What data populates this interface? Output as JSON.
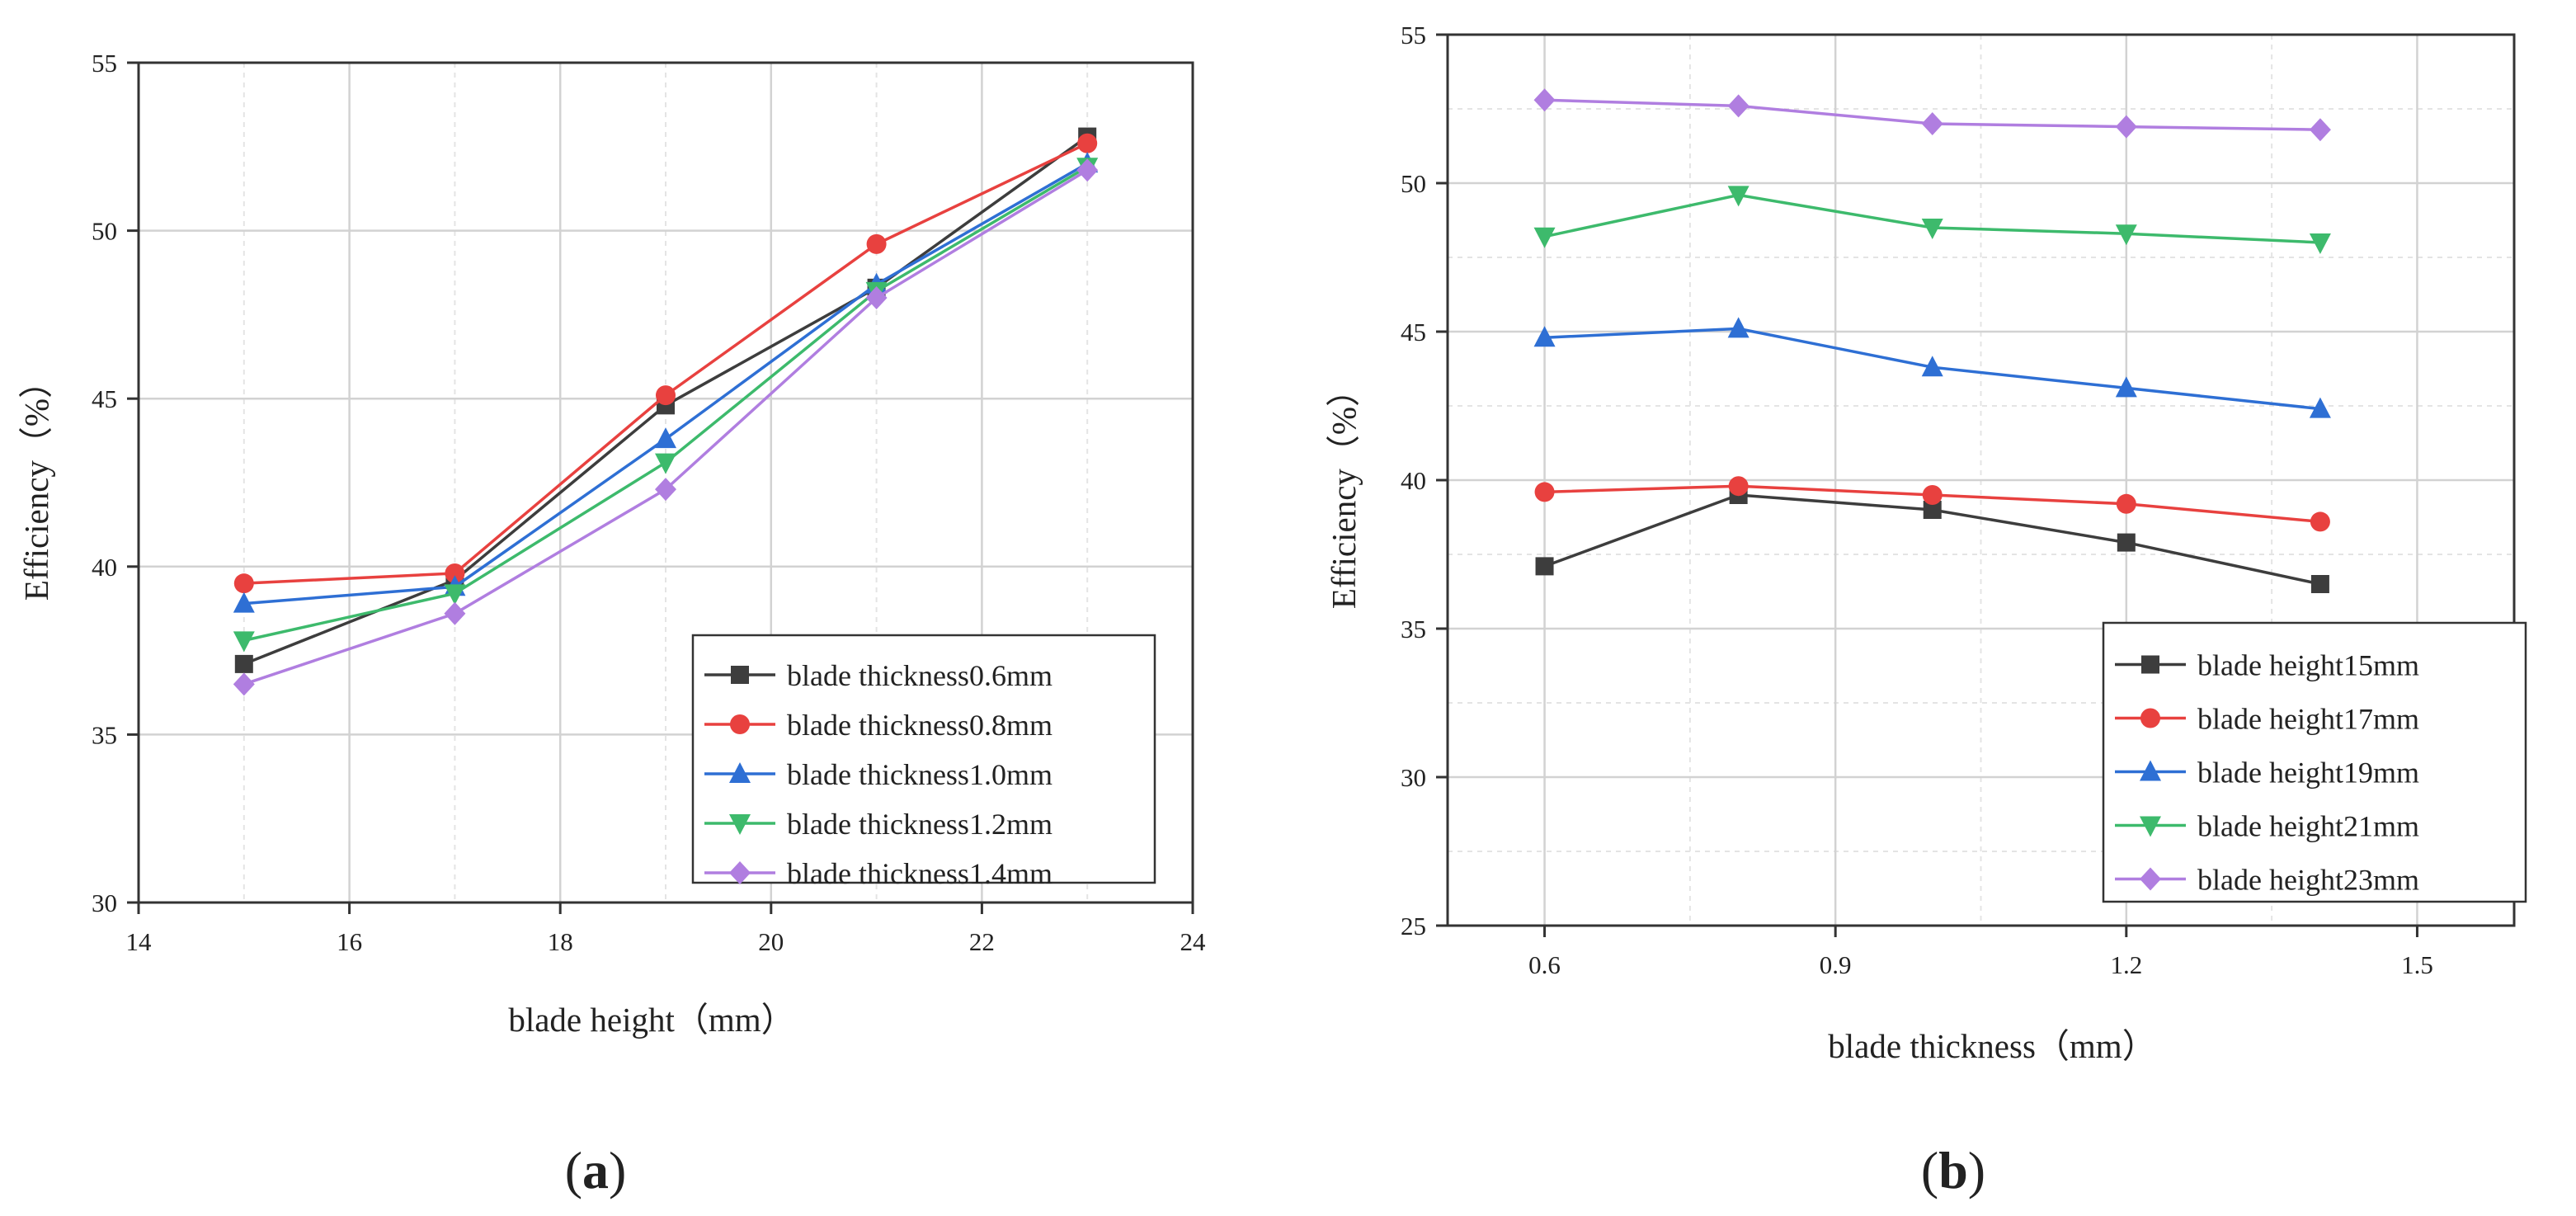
{
  "colors": {
    "gray": "#3d3d3d",
    "red": "#e8413f",
    "blue": "#2e6fd4",
    "green": "#3dba6c",
    "purple": "#b07ee0"
  },
  "chart_data": [
    {
      "type": "line",
      "panel_label_prefix": "(",
      "panel_label_letter": "a",
      "panel_label_suffix": ")",
      "xlabel": "blade height（mm）",
      "ylabel": "Efficiency（%）",
      "xlim": [
        14,
        24
      ],
      "ylim": [
        30,
        55
      ],
      "xticks": [
        14,
        16,
        18,
        20,
        22,
        24
      ],
      "yticks": [
        30,
        35,
        40,
        45,
        50,
        55
      ],
      "grid": true,
      "legend_position": "bottom-right",
      "series": [
        {
          "name": "blade thickness0.6mm",
          "color": "#3d3d3d",
          "marker": "square",
          "x": [
            15,
            17,
            19,
            21,
            23
          ],
          "y": [
            37.1,
            39.6,
            44.8,
            48.3,
            52.8
          ]
        },
        {
          "name": "blade thickness0.8mm",
          "color": "#e8413f",
          "marker": "circle",
          "x": [
            15,
            17,
            19,
            21,
            23
          ],
          "y": [
            39.5,
            39.8,
            45.1,
            49.6,
            52.6
          ]
        },
        {
          "name": "blade thickness1.0mm",
          "color": "#2e6fd4",
          "marker": "triangle-up",
          "x": [
            15,
            17,
            19,
            21,
            23
          ],
          "y": [
            38.9,
            39.4,
            43.8,
            48.4,
            52.0
          ]
        },
        {
          "name": "blade thickness1.2mm",
          "color": "#3dba6c",
          "marker": "triangle-down",
          "x": [
            15,
            17,
            19,
            21,
            23
          ],
          "y": [
            37.8,
            39.2,
            43.1,
            48.2,
            51.9
          ]
        },
        {
          "name": "blade thickness1.4mm",
          "color": "#b07ee0",
          "marker": "diamond",
          "x": [
            15,
            17,
            19,
            21,
            23
          ],
          "y": [
            36.5,
            38.6,
            42.3,
            48.0,
            51.8
          ]
        }
      ]
    },
    {
      "type": "line",
      "panel_label_prefix": "(",
      "panel_label_letter": "b",
      "panel_label_suffix": ")",
      "xlabel": "blade thickness（mm）",
      "ylabel": "Efficiency（%）",
      "xlim": [
        0.5,
        1.6
      ],
      "ylim": [
        25,
        55
      ],
      "xticks": [
        0.6,
        0.9,
        1.2,
        1.5
      ],
      "yticks": [
        25,
        30,
        35,
        40,
        45,
        50,
        55
      ],
      "grid": true,
      "legend_position": "bottom-right",
      "series": [
        {
          "name": "blade height15mm",
          "color": "#3d3d3d",
          "marker": "square",
          "x": [
            0.6,
            0.8,
            1.0,
            1.2,
            1.4
          ],
          "y": [
            37.1,
            39.5,
            39.0,
            37.9,
            36.5
          ]
        },
        {
          "name": "blade height17mm",
          "color": "#e8413f",
          "marker": "circle",
          "x": [
            0.6,
            0.8,
            1.0,
            1.2,
            1.4
          ],
          "y": [
            39.6,
            39.8,
            39.5,
            39.2,
            38.6
          ]
        },
        {
          "name": "blade height19mm",
          "color": "#2e6fd4",
          "marker": "triangle-up",
          "x": [
            0.6,
            0.8,
            1.0,
            1.2,
            1.4
          ],
          "y": [
            44.8,
            45.1,
            43.8,
            43.1,
            42.4
          ]
        },
        {
          "name": "blade height21mm",
          "color": "#3dba6c",
          "marker": "triangle-down",
          "x": [
            0.6,
            0.8,
            1.0,
            1.2,
            1.4
          ],
          "y": [
            48.2,
            49.6,
            48.5,
            48.3,
            48.0
          ]
        },
        {
          "name": "blade height23mm",
          "color": "#b07ee0",
          "marker": "diamond",
          "x": [
            0.6,
            0.8,
            1.0,
            1.2,
            1.4
          ],
          "y": [
            52.8,
            52.6,
            52.0,
            51.9,
            51.8
          ]
        }
      ]
    }
  ]
}
